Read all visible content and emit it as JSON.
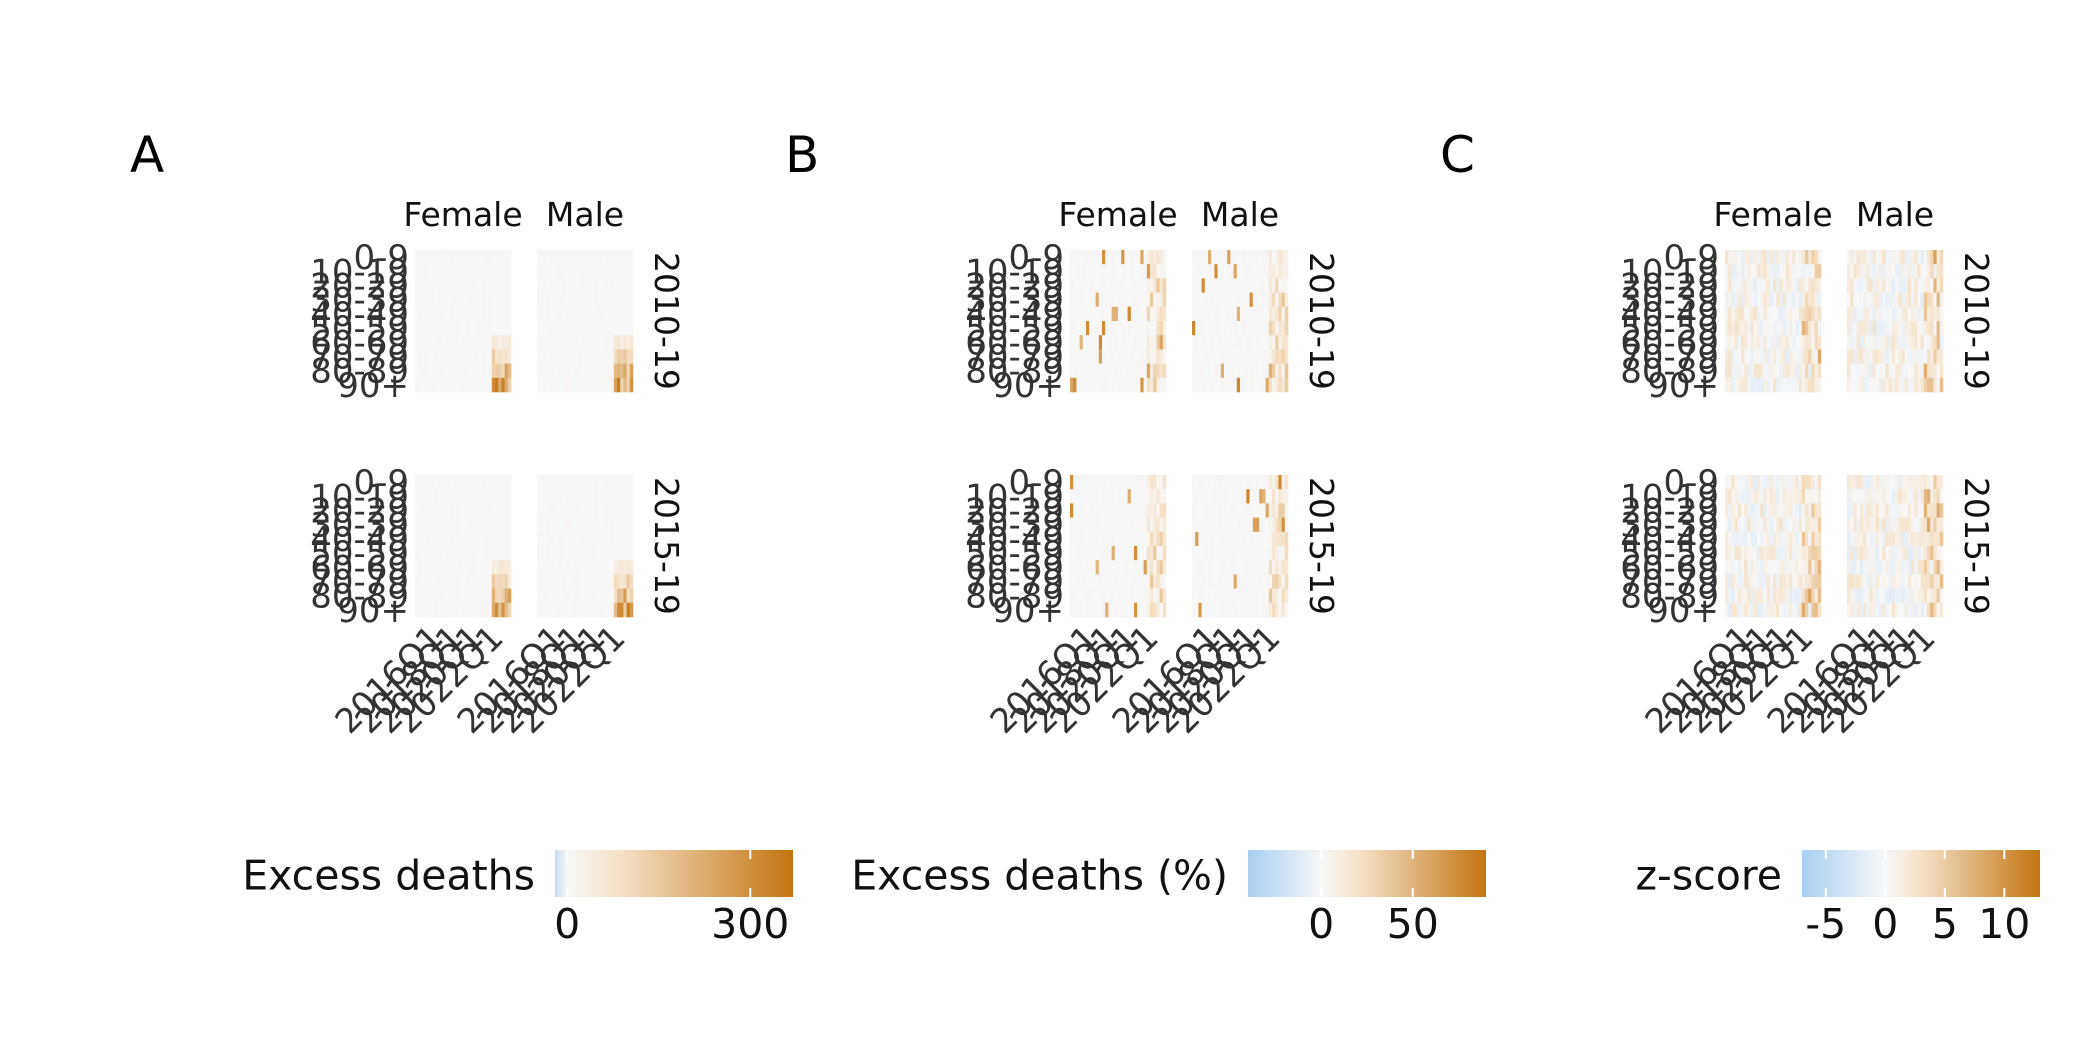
{
  "chart_data": [
    {
      "panel_label": "A",
      "type": "heatmap",
      "facet_columns": [
        "Female",
        "Male"
      ],
      "facet_rows": [
        "2010-19",
        "2015-19"
      ],
      "y_categories": [
        "0-9",
        "10-19",
        "20-29",
        "30-39",
        "40-49",
        "50-59",
        "60-69",
        "70-79",
        "80-89",
        "90+"
      ],
      "x_tick_labels": [
        "2016Q1",
        "2018Q1",
        "2020Q1",
        "2022Q1"
      ],
      "n_quarters": 30,
      "legend": {
        "title": "Excess deaths",
        "ticks": [
          0,
          300
        ],
        "range": [
          -20,
          370
        ],
        "colors": [
          "#c6dbef",
          "#f7f7f7",
          "#f4dfc4",
          "#c47410"
        ]
      }
    },
    {
      "panel_label": "B",
      "type": "heatmap",
      "facet_columns": [
        "Female",
        "Male"
      ],
      "facet_rows": [
        "2010-19",
        "2015-19"
      ],
      "y_categories": [
        "0-9",
        "10-19",
        "20-29",
        "30-39",
        "40-49",
        "50-59",
        "60-69",
        "70-79",
        "80-89",
        "90+"
      ],
      "x_tick_labels": [
        "2016Q1",
        "2018Q1",
        "2020Q1",
        "2022Q1"
      ],
      "n_quarters": 30,
      "legend": {
        "title": "Excess deaths (%)",
        "ticks": [
          0,
          50
        ],
        "range": [
          -40,
          90
        ],
        "colors": [
          "#a9cff2",
          "#f7f7f7",
          "#f4dfc4",
          "#c47410"
        ]
      }
    },
    {
      "panel_label": "C",
      "type": "heatmap",
      "facet_columns": [
        "Female",
        "Male"
      ],
      "facet_rows": [
        "2010-19",
        "2015-19"
      ],
      "y_categories": [
        "0-9",
        "10-19",
        "20-29",
        "30-39",
        "40-49",
        "50-59",
        "60-69",
        "70-79",
        "80-89",
        "90+"
      ],
      "x_tick_labels": [
        "2016Q1",
        "2018Q1",
        "2020Q1",
        "2022Q1"
      ],
      "n_quarters": 30,
      "legend": {
        "title": "z-score",
        "ticks": [
          -5,
          0,
          5,
          10
        ],
        "range": [
          -7,
          13
        ],
        "colors": [
          "#a9cff2",
          "#f7f7f7",
          "#f4dfc4",
          "#c47410"
        ]
      }
    }
  ],
  "colors": {
    "negative": "#a9cff2",
    "neutral": "#f7f7f7",
    "positive": "#c47410",
    "text": "#333333"
  }
}
